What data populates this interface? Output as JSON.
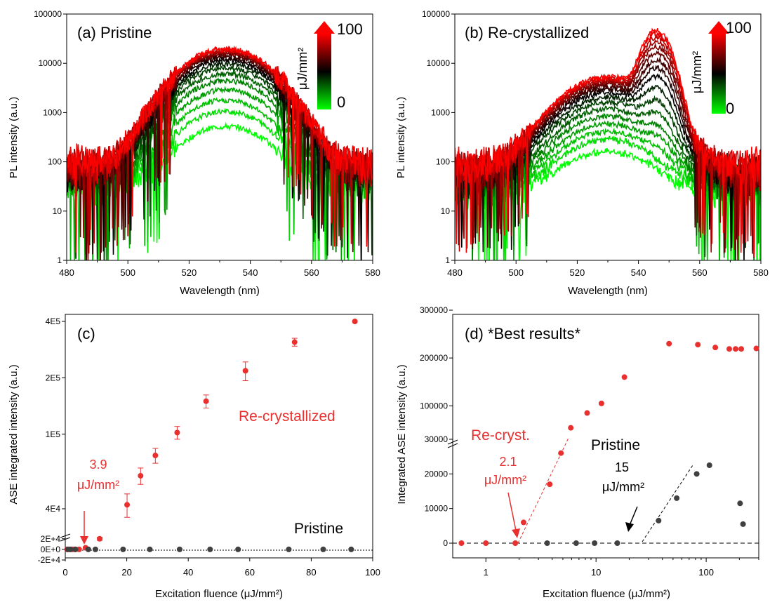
{
  "chart_data": [
    {
      "panel": "a",
      "type": "line",
      "title": "(a) Pristine",
      "xlabel": "Wavelength (nm)",
      "ylabel": "PL intensity (a.u.)",
      "xlim": [
        480,
        580
      ],
      "ylim": [
        1,
        100000
      ],
      "yscale": "log",
      "x_ticks": [
        "480",
        "500",
        "520",
        "540",
        "560",
        "580"
      ],
      "y_ticks": [
        "1",
        "10",
        "100",
        "1000",
        "10000",
        "100000"
      ],
      "colorbar": {
        "top": "100",
        "bottom": "0",
        "unit": "μJ/mm²",
        "colors": [
          "#ff0000",
          "#000000",
          "#00ff00"
        ]
      },
      "spectrum": {
        "peak_nm": 532,
        "fwhm_nm": 24
      },
      "peak_intensities": [
        480,
        1000,
        1700,
        2800,
        4300,
        6000,
        7800,
        9600,
        11300,
        12800,
        14100,
        15300,
        16400,
        17200,
        18000,
        18700,
        19300
      ]
    },
    {
      "panel": "b",
      "type": "line",
      "title": "(b) Re-crystallized",
      "xlabel": "Wavelength (nm)",
      "ylabel": "PL intensity (a.u.)",
      "xlim": [
        480,
        580
      ],
      "ylim": [
        1,
        100000
      ],
      "yscale": "log",
      "x_ticks": [
        "480",
        "500",
        "520",
        "540",
        "560",
        "580"
      ],
      "y_ticks": [
        "1",
        "10",
        "100",
        "1000",
        "10000",
        "100000"
      ],
      "colorbar": {
        "top": "100",
        "bottom": "0",
        "unit": "μJ/mm²",
        "colors": [
          "#ff0000",
          "#000000",
          "#00ff00"
        ]
      },
      "spectrum": {
        "broad_peak_nm": 530,
        "ase_peak_nm": 546
      },
      "curves": [
        {
          "broad": 140,
          "ase": 0
        },
        {
          "broad": 260,
          "ase": 0
        },
        {
          "broad": 380,
          "ase": 40
        },
        {
          "broad": 560,
          "ase": 120
        },
        {
          "broad": 800,
          "ase": 250
        },
        {
          "broad": 1150,
          "ase": 550
        },
        {
          "broad": 1550,
          "ase": 1200
        },
        {
          "broad": 2000,
          "ase": 2400
        },
        {
          "broad": 2500,
          "ase": 4400
        },
        {
          "broad": 2900,
          "ase": 7000
        },
        {
          "broad": 3300,
          "ase": 10500
        },
        {
          "broad": 3700,
          "ase": 15000
        },
        {
          "broad": 4000,
          "ase": 20000
        },
        {
          "broad": 4300,
          "ase": 26000
        },
        {
          "broad": 4600,
          "ase": 32000
        },
        {
          "broad": 4900,
          "ase": 38000
        },
        {
          "broad": 5200,
          "ase": 45000
        }
      ]
    },
    {
      "panel": "c",
      "type": "scatter",
      "title": "(c)",
      "xlabel": "Excitation fluence (μJ/mm²)",
      "ylabel": "ASE integrated intensity (a.u.)",
      "xlim": [
        0,
        100
      ],
      "x_ticks": [
        0,
        20,
        40,
        60,
        80,
        100
      ],
      "y_ticks": [
        {
          "label": "-2E+4",
          "value": -20000
        },
        {
          "label": "0E+0",
          "value": 0
        },
        {
          "label": "2E+4",
          "value": 20000
        },
        {
          "label": "4E4",
          "value": 40000
        },
        {
          "label": "1E5",
          "value": 100000
        },
        {
          "label": "2E5",
          "value": 200000
        },
        {
          "label": "4E5",
          "value": 400000
        }
      ],
      "y_break": 25000,
      "series": [
        {
          "name": "Re-crystallized",
          "color": "#e8302f",
          "points": [
            [
              0.6,
              0,
              0
            ],
            [
              1.4,
              0,
              0
            ],
            [
              2.3,
              0,
              0
            ],
            [
              3.1,
              0,
              0
            ],
            [
              4.5,
              0,
              0
            ],
            [
              6.6,
              3000,
              2000
            ],
            [
              11.2,
              20000,
              3000
            ],
            [
              20.1,
              42000,
              6000
            ],
            [
              24.5,
              60000,
              6000
            ],
            [
              29.3,
              77000,
              7000
            ],
            [
              36.4,
              102000,
              8000
            ],
            [
              45.8,
              150000,
              12000
            ],
            [
              58.6,
              218000,
              25000
            ],
            [
              74.6,
              310000,
              15000
            ],
            [
              94.2,
              400000,
              0
            ]
          ]
        },
        {
          "name": "Pristine",
          "color": "#404040",
          "points": [
            [
              0.8,
              0
            ],
            [
              1.7,
              0
            ],
            [
              3.3,
              0
            ],
            [
              7.5,
              0
            ],
            [
              9.8,
              0
            ],
            [
              18.8,
              0
            ],
            [
              27.5,
              0
            ],
            [
              37.2,
              0
            ],
            [
              47.1,
              0
            ],
            [
              56.2,
              0
            ],
            [
              72.7,
              0
            ],
            [
              83.9,
              0
            ],
            [
              93.0,
              0
            ]
          ]
        }
      ],
      "annotations": [
        {
          "text": "3.9",
          "line2": "μJ/mm²",
          "color": "#e8302f"
        },
        {
          "text": "Re-crystallized",
          "color": "#e8302f"
        },
        {
          "text": "Pristine",
          "color": "#000000"
        }
      ]
    },
    {
      "panel": "d",
      "type": "scatter",
      "title": "(d) *Best results*",
      "xlabel": "Excitation fluence (μJ/mm²)",
      "ylabel": "Integrated ASE intensity (a.u.)",
      "xscale": "log",
      "xlim": [
        0.5,
        300
      ],
      "x_ticks": [
        1,
        10,
        100
      ],
      "y_ticks": [
        0,
        10000,
        20000,
        30000,
        100000,
        200000,
        300000
      ],
      "y_break": 30000,
      "series": [
        {
          "name": "Re-cryst.",
          "color": "#e8302f",
          "points": [
            [
              0.6,
              0
            ],
            [
              1.0,
              0
            ],
            [
              1.85,
              0
            ],
            [
              2.2,
              6000
            ],
            [
              3.8,
              17000
            ],
            [
              4.8,
              26000
            ],
            [
              5.9,
              54000
            ],
            [
              8.3,
              85000
            ],
            [
              11.2,
              105000
            ],
            [
              18.1,
              160000
            ],
            [
              46,
              230000
            ],
            [
              84,
              228000
            ],
            [
              121,
              222000
            ],
            [
              162,
              219000
            ],
            [
              185,
              219000
            ],
            [
              208,
              219000
            ],
            [
              285,
              220000
            ]
          ]
        },
        {
          "name": "Pristine",
          "color": "#404040",
          "points": [
            [
              3.6,
              0
            ],
            [
              6.6,
              0
            ],
            [
              9.7,
              0
            ],
            [
              15.6,
              0
            ],
            [
              37,
              6500
            ],
            [
              54,
              13000
            ],
            [
              82,
              20000
            ],
            [
              107,
              22500
            ],
            [
              203,
              11500
            ],
            [
              216,
              5500
            ]
          ]
        }
      ],
      "annotations": [
        {
          "text": "Re-cryst.",
          "color": "#e8302f"
        },
        {
          "text": "2.1",
          "line2": "μJ/mm²",
          "color": "#e8302f"
        },
        {
          "text": "Pristine",
          "color": "#000000"
        },
        {
          "text": "15",
          "line2": "μJ/mm²",
          "color": "#000000"
        }
      ]
    }
  ]
}
